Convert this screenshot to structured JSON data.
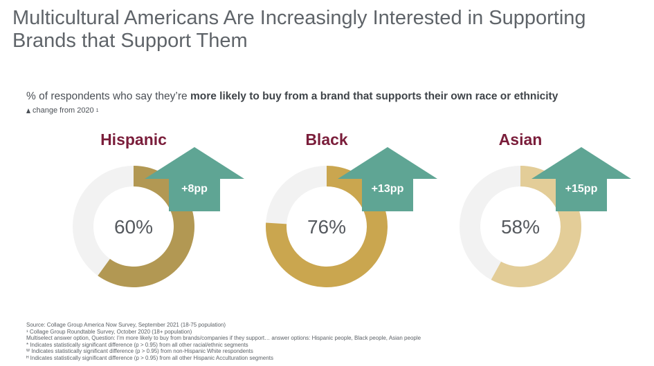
{
  "title": "Multicultural Americans Are Increasingly Interested in Supporting Brands that Support Them",
  "subtitle": {
    "prefix": "% of respondents who say they’re ",
    "emphasis": "more likely to buy from a brand that supports their own race or ethnicity"
  },
  "legend_note": {
    "icon": "up-arrow-icon",
    "text": "change from 2020",
    "footnote_mark": "1"
  },
  "colors": {
    "track": "#f2f2f2",
    "arrow": "#5fa594",
    "label": "#7a1d3a"
  },
  "chart_data": {
    "type": "donut",
    "categories": [
      "Hispanic",
      "Black",
      "Asian"
    ],
    "values": [
      60,
      76,
      58
    ],
    "value_labels": [
      "60%",
      "76%",
      "58%"
    ],
    "change_from_2020_labels": [
      "+8pp",
      "+13pp",
      "+15pp"
    ],
    "change_from_2020_values": [
      8,
      13,
      15
    ],
    "segment_colors": [
      "#b29853",
      "#caa64f",
      "#e3cd98"
    ]
  },
  "notes": [
    "Source: Collage Group America Now Survey, September 2021 (18-75 population)",
    "¹ Collage Group Roundtable Survey, October 2020 (18+ population)",
    "Multiselect answer option, Question: I’m more likely to buy from brands/companies if they support… answer options: Hispanic people, Black people, Asian people",
    "* Indicates statistically significant difference (p > 0.95) from all other racial/ethnic segments",
    "ᵂ Indicates statistically significant difference (p > 0.95) from non-Hispanic White respondents",
    "ᴴ Indicates statistically significant difference (p > 0.95) from all other Hispanic Acculturation segments"
  ]
}
